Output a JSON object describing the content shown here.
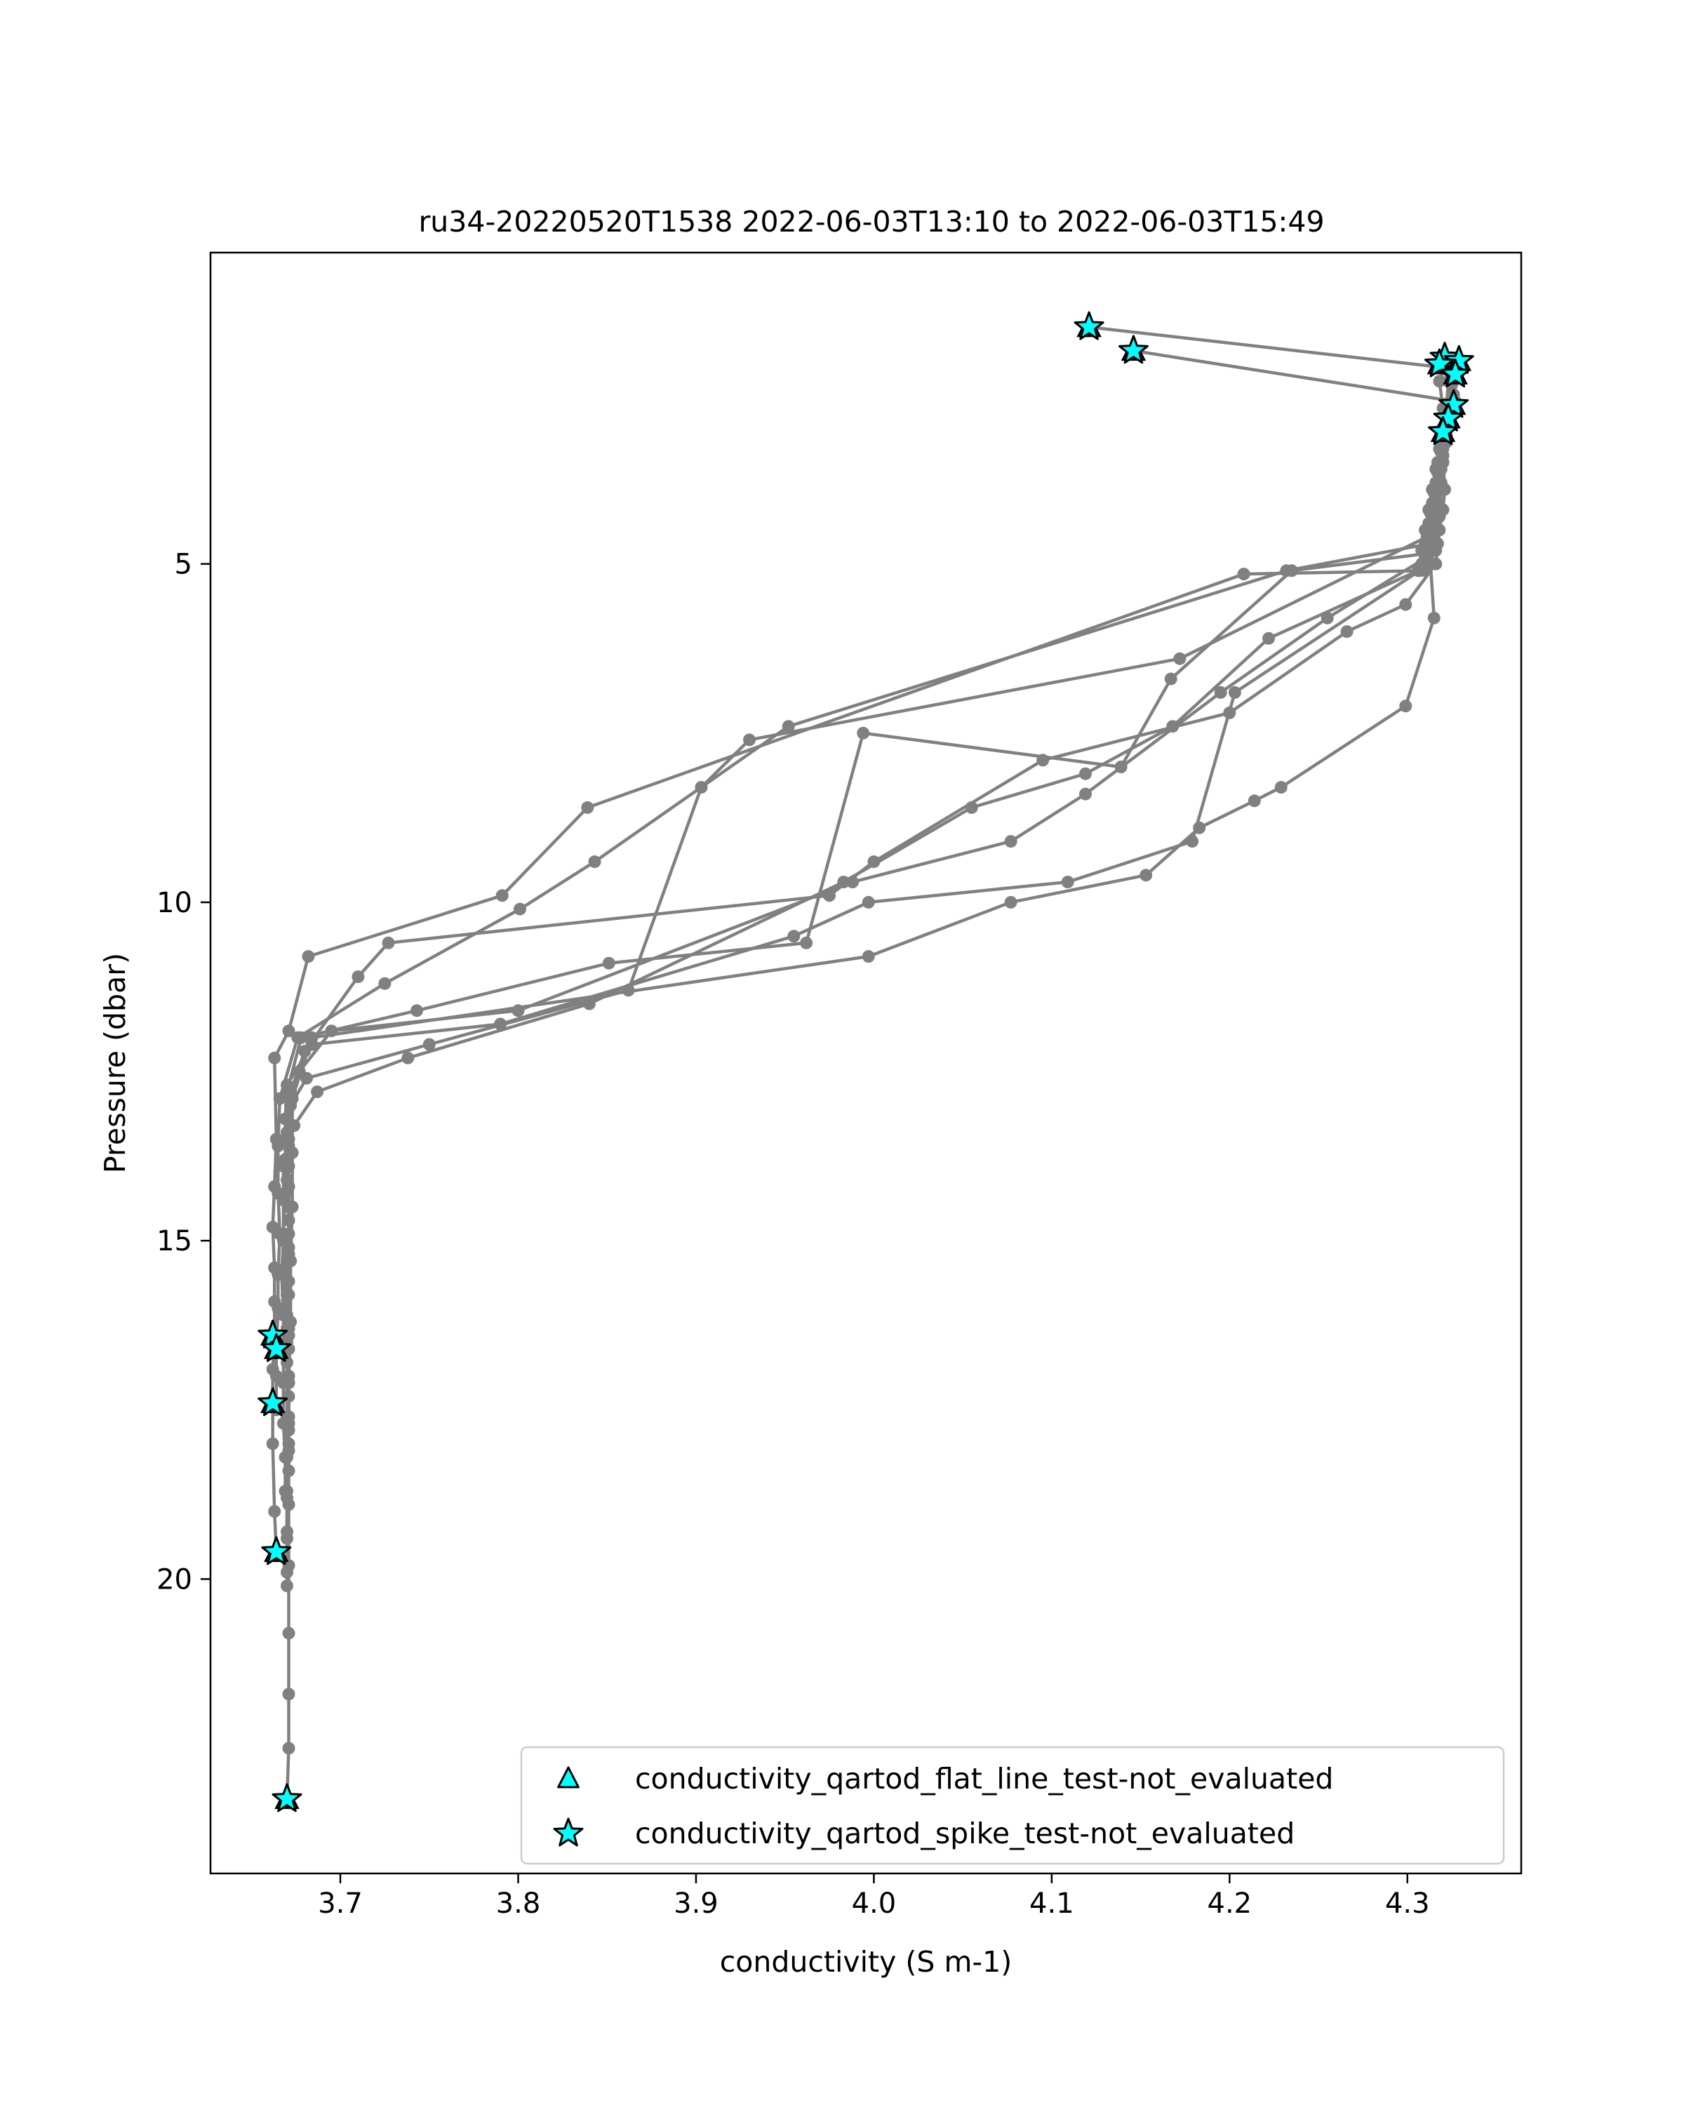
{
  "chart_data": {
    "type": "scatter",
    "title": "ru34-20220520T1538 2022-06-03T13:10 to 2022-06-03T15:49",
    "xlabel": "conductivity (S m-1)",
    "ylabel": "Pressure (dbar)",
    "xlim": [
      3.627,
      4.364
    ],
    "ylim": [
      24.35,
      0.4
    ],
    "y_inverted": true,
    "grid": false,
    "legend_position": "lower-right",
    "xticks": [
      {
        "value": 3.7,
        "label": "3.7"
      },
      {
        "value": 3.8,
        "label": "3.8"
      },
      {
        "value": 3.9,
        "label": "3.9"
      },
      {
        "value": 4.0,
        "label": "4.0"
      },
      {
        "value": 4.1,
        "label": "4.1"
      },
      {
        "value": 4.2,
        "label": "4.2"
      },
      {
        "value": 4.3,
        "label": "4.3"
      }
    ],
    "yticks": [
      {
        "value": 5,
        "label": "5"
      },
      {
        "value": 10,
        "label": "10"
      },
      {
        "value": 15,
        "label": "15"
      },
      {
        "value": 20,
        "label": "20"
      }
    ],
    "colors": {
      "profile": "#808080",
      "marker_fill": "#00ffff",
      "marker_edge": "#000000"
    },
    "legend": [
      {
        "label": "conductivity_qartod_flat_line_test-not_evaluated",
        "marker": "triangle"
      },
      {
        "label": "conductivity_qartod_spike_test-not_evaluated",
        "marker": "star"
      }
    ],
    "profiles": [
      {
        "x": [
          4.121,
          4.321,
          4.318,
          4.32,
          4.321,
          4.32,
          4.319,
          4.321,
          4.32,
          4.318,
          4.316,
          4.31,
          4.208,
          3.839,
          3.791,
          3.682,
          3.671,
          3.663,
          3.664,
          3.663,
          3.662,
          3.663,
          3.663,
          3.663,
          3.662,
          3.662,
          3.662,
          3.663,
          3.664
        ],
        "y": [
          1.5,
          2.1,
          2.3,
          2.7,
          3.0,
          3.3,
          3.6,
          3.9,
          4.2,
          4.5,
          4.8,
          5.1,
          5.15,
          8.6,
          9.9,
          10.8,
          11.9,
          12.3,
          13.5,
          14.2,
          14.8,
          15.4,
          15.9,
          16.4,
          16.9,
          17.4,
          18.0,
          19.0,
          19.6
        ]
      },
      {
        "x": [
          4.146,
          4.327,
          4.323,
          4.322,
          4.32,
          4.319,
          4.317,
          4.315,
          4.313,
          4.232,
          3.952,
          3.843,
          3.801,
          3.725,
          3.676,
          3.666,
          3.665,
          3.665,
          3.666,
          3.665,
          3.665,
          3.664,
          3.664,
          3.664
        ],
        "y": [
          1.85,
          2.6,
          2.9,
          3.2,
          3.5,
          3.8,
          4.1,
          4.4,
          4.7,
          5.1,
          7.4,
          9.4,
          10.1,
          11.2,
          12.0,
          12.9,
          13.6,
          14.3,
          14.9,
          15.5,
          16.0,
          16.6,
          17.0,
          17.5
        ]
      },
      {
        "x": [
          4.329,
          4.325,
          4.323,
          4.321,
          4.319,
          4.316,
          4.314,
          4.313,
          4.311,
          4.172,
          3.93,
          3.903,
          3.862,
          3.75,
          3.681,
          3.672,
          3.669,
          3.67,
          3.671,
          3.671,
          3.67,
          3.67,
          3.67,
          3.671,
          3.671
        ],
        "y": [
          2.0,
          2.35,
          2.7,
          3.0,
          3.3,
          3.6,
          3.9,
          4.2,
          4.6,
          6.4,
          7.6,
          8.3,
          11.3,
          12.1,
          12.6,
          13.0,
          13.5,
          14.1,
          14.7,
          15.2,
          15.8,
          16.3,
          16.8,
          17.3,
          17.8
        ]
      },
      {
        "x": [
          4.326,
          4.322,
          4.321,
          4.319,
          4.317,
          4.315,
          4.313,
          4.312,
          4.31,
          4.235,
          4.167,
          4.139,
          3.994,
          3.962,
          3.851,
          3.743,
          3.678,
          3.67,
          3.67,
          3.671,
          3.671,
          3.671,
          3.67,
          3.67,
          3.671,
          3.671
        ],
        "y": [
          2.5,
          2.75,
          3.05,
          3.35,
          3.65,
          3.95,
          4.25,
          4.55,
          4.85,
          5.1,
          6.7,
          8.0,
          7.5,
          10.6,
          10.9,
          11.6,
          12.0,
          12.8,
          13.4,
          13.9,
          14.5,
          15.1,
          15.6,
          16.1,
          16.6,
          17.1
        ]
      },
      {
        "x": [
          4.322,
          4.318,
          4.316,
          4.314,
          4.312,
          4.31,
          4.308,
          4.306,
          4.222,
          4.168,
          4.119,
          4.055,
          3.983,
          3.84,
          3.738,
          3.687,
          3.674,
          3.668,
          3.668,
          3.668,
          3.667,
          3.668,
          3.668,
          3.668,
          3.668,
          3.669,
          3.669
        ],
        "y": [
          3.0,
          3.3,
          3.6,
          3.9,
          4.2,
          4.5,
          4.8,
          5.1,
          6.1,
          7.4,
          8.1,
          8.6,
          9.7,
          11.5,
          12.3,
          12.8,
          13.3,
          13.9,
          14.4,
          15.0,
          15.5,
          16.1,
          16.6,
          17.1,
          17.7,
          18.2,
          18.7
        ]
      },
      {
        "x": [
          4.325,
          4.322,
          4.32,
          4.318,
          4.316,
          4.314,
          4.312,
          4.311,
          4.255,
          4.195,
          4.119,
          4.077,
          3.988,
          3.8,
          3.695,
          3.677,
          3.672,
          3.671,
          3.671,
          3.671,
          3.672,
          3.671,
          3.671,
          3.671,
          3.671,
          3.671,
          3.67,
          3.67,
          3.67
        ],
        "y": [
          2.8,
          3.1,
          3.4,
          3.7,
          4.0,
          4.3,
          4.6,
          4.9,
          5.8,
          6.9,
          8.4,
          9.1,
          9.7,
          11.6,
          11.9,
          12.5,
          13.0,
          13.6,
          14.2,
          14.7,
          15.3,
          15.8,
          16.4,
          17.0,
          17.6,
          18.1,
          18.7,
          19.3,
          19.9
        ]
      },
      {
        "x": [
          4.319,
          4.317,
          4.316,
          4.314,
          4.312,
          4.31,
          4.308,
          4.307,
          4.203,
          4.179,
          4.109,
          3.997,
          3.955,
          3.79,
          3.684,
          3.67,
          3.669,
          3.669,
          3.669,
          3.668,
          3.669,
          3.669,
          3.67,
          3.67,
          3.67,
          3.67,
          3.67,
          3.67,
          3.67
        ],
        "y": [
          3.2,
          3.5,
          3.8,
          4.1,
          4.4,
          4.7,
          5.0,
          5.1,
          6.9,
          9.1,
          9.7,
          10.0,
          10.5,
          11.8,
          12.1,
          12.7,
          13.2,
          13.8,
          14.3,
          14.9,
          15.4,
          16.0,
          16.5,
          17.1,
          17.6,
          18.2,
          18.8,
          19.4,
          20.1
        ]
      },
      {
        "x": [
          4.327,
          4.324,
          4.322,
          4.32,
          4.318,
          4.316,
          4.315,
          4.313,
          4.315,
          4.299,
          4.229,
          4.214,
          4.183,
          4.153,
          4.077,
          3.997,
          3.684,
          3.673,
          3.673,
          3.673,
          3.672,
          3.672,
          3.671,
          3.671,
          3.671,
          3.671,
          3.671,
          3.671,
          3.671,
          3.67
        ],
        "y": [
          2.2,
          2.6,
          3.0,
          3.4,
          3.8,
          4.2,
          4.6,
          5.0,
          5.8,
          7.1,
          8.3,
          8.5,
          8.9,
          9.6,
          10.0,
          10.8,
          12.0,
          12.9,
          13.7,
          14.5,
          15.3,
          16.2,
          17.1,
          18.0,
          18.9,
          19.8,
          20.8,
          21.7,
          22.5,
          23.25
        ]
      },
      {
        "x": [
          4.323,
          4.322,
          4.321,
          4.32,
          4.319,
          4.318,
          4.317,
          4.316,
          4.299,
          4.266,
          4.2,
          4.095,
          4.0,
          3.975,
          3.727,
          3.71,
          3.68,
          3.672,
          3.671,
          3.671,
          3.671,
          3.671,
          3.671,
          3.671,
          3.671,
          3.671
        ],
        "y": [
          2.3,
          2.7,
          3.1,
          3.5,
          3.9,
          4.3,
          4.7,
          5.0,
          5.6,
          6.0,
          7.2,
          7.9,
          9.4,
          9.9,
          10.6,
          11.1,
          12.2,
          12.8,
          13.5,
          14.2,
          14.9,
          15.6,
          16.3,
          17.0,
          17.7,
          18.4
        ]
      }
    ],
    "flagged_points": [
      {
        "x": 4.121,
        "y": 1.5
      },
      {
        "x": 4.146,
        "y": 1.85
      },
      {
        "x": 4.321,
        "y": 1.95
      },
      {
        "x": 4.329,
        "y": 2.0
      },
      {
        "x": 4.318,
        "y": 2.05
      },
      {
        "x": 4.327,
        "y": 2.2
      },
      {
        "x": 4.326,
        "y": 2.65
      },
      {
        "x": 4.323,
        "y": 2.85
      },
      {
        "x": 4.32,
        "y": 3.05
      },
      {
        "x": 3.662,
        "y": 16.4
      },
      {
        "x": 3.664,
        "y": 16.6
      },
      {
        "x": 3.662,
        "y": 17.4
      },
      {
        "x": 3.664,
        "y": 19.6
      },
      {
        "x": 3.67,
        "y": 23.25
      }
    ]
  }
}
